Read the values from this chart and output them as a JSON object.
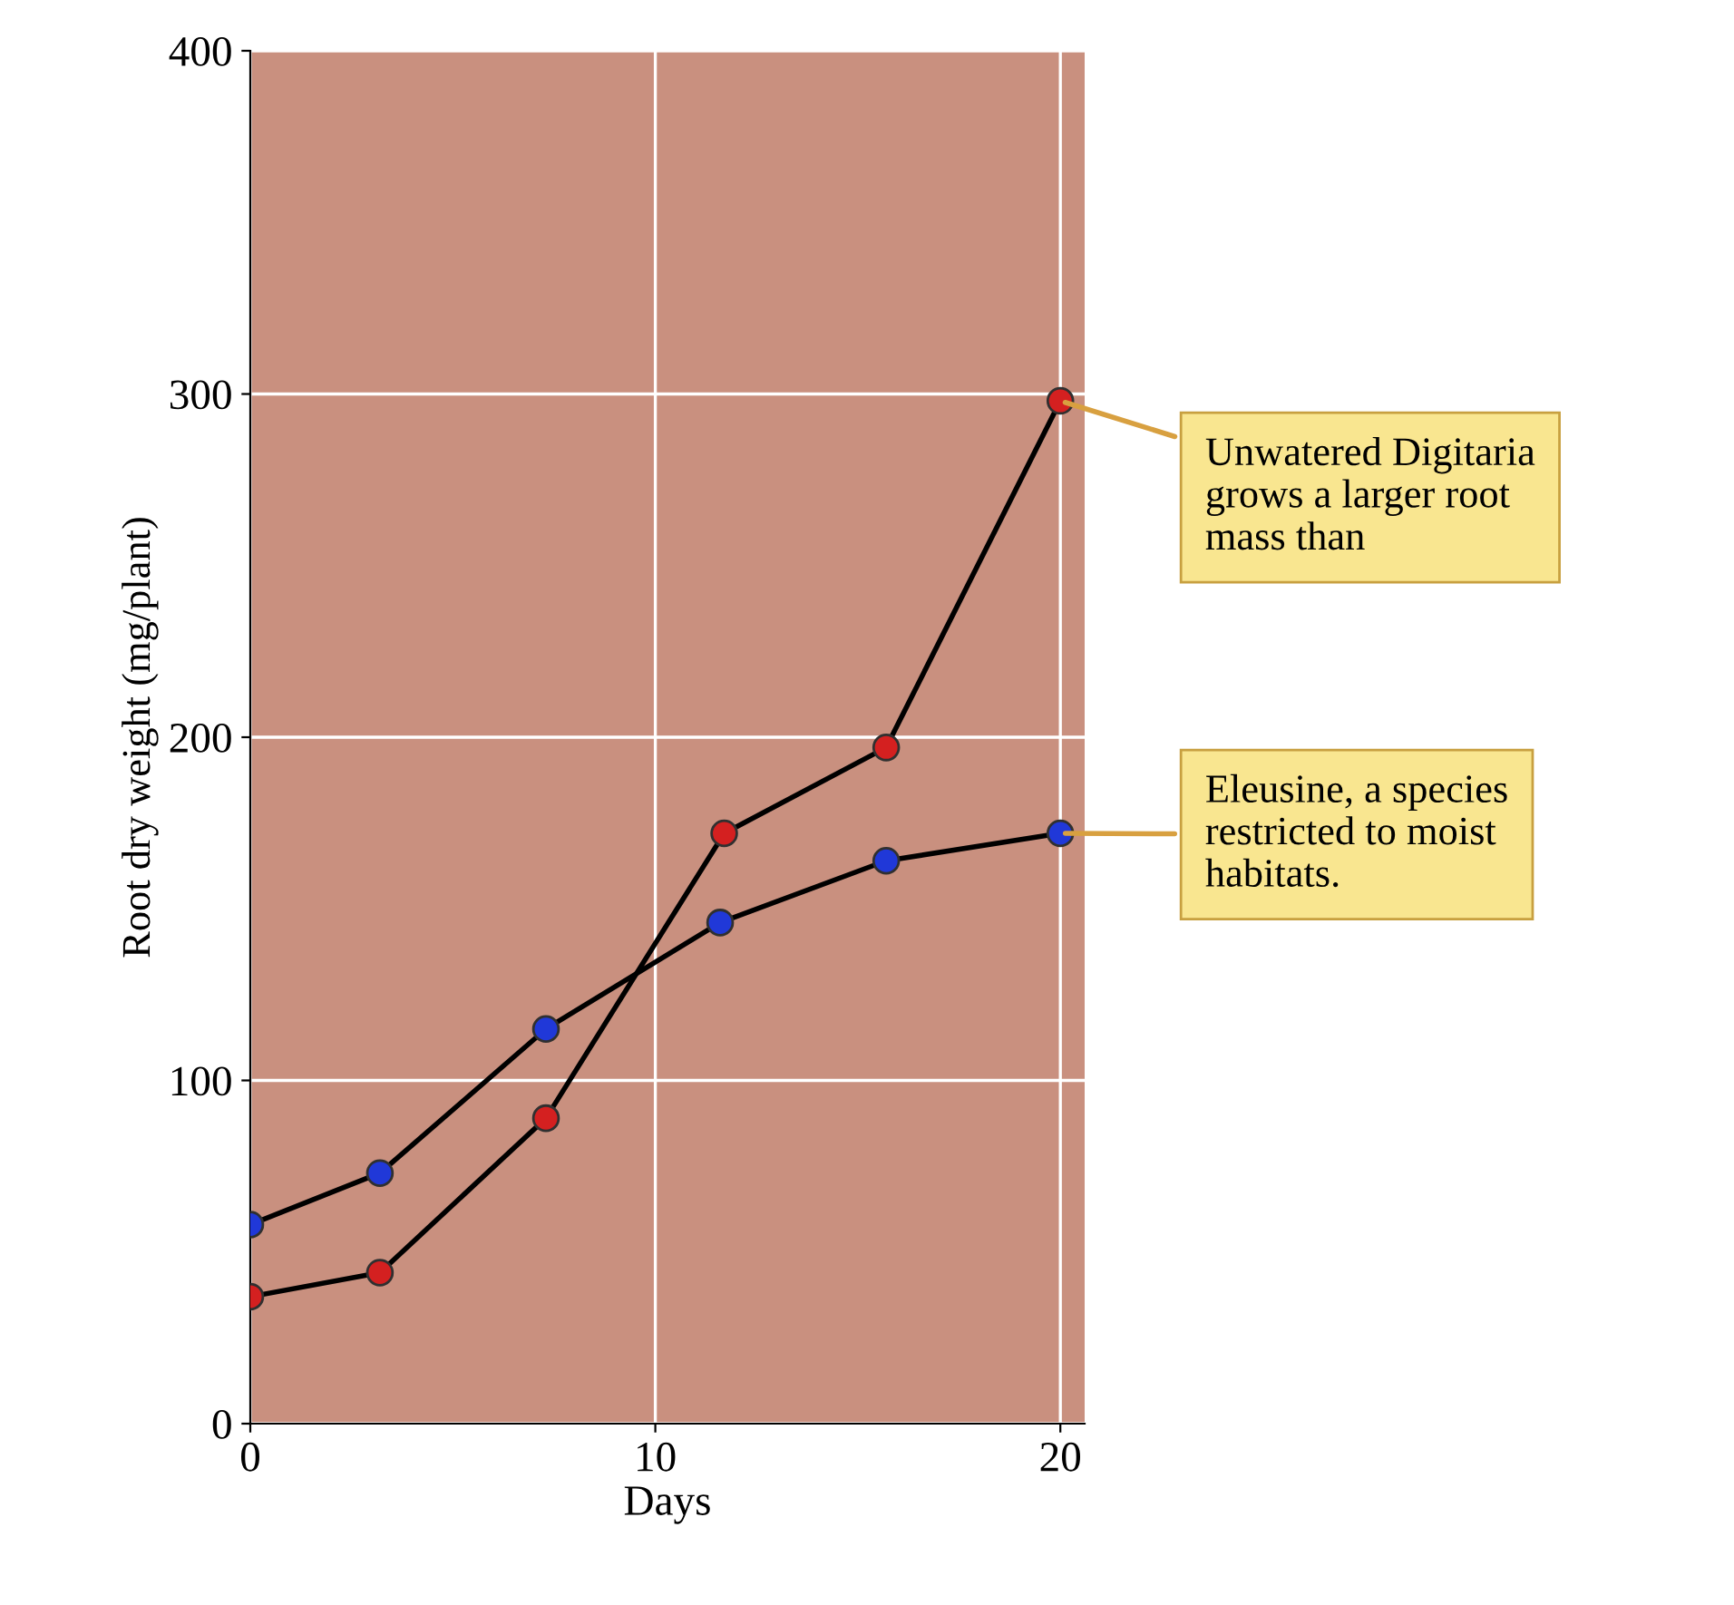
{
  "chart_data": {
    "type": "line",
    "xlabel": "Days",
    "ylabel": "Root dry weight (mg/plant)",
    "xlim": [
      0,
      20.6
    ],
    "xticks": [
      0,
      10,
      20
    ],
    "ylim": [
      0,
      400
    ],
    "yticks": [
      0,
      100,
      200,
      300,
      400
    ],
    "grid": true,
    "marker": "circle",
    "line_style": "solid",
    "legend": false,
    "series": [
      {
        "color": "#d42020",
        "x": [
          0,
          3.2,
          7.3,
          11.7,
          15.7,
          20
        ],
        "values": [
          37,
          44,
          89,
          172,
          197,
          298
        ]
      },
      {
        "color": "#2038d8",
        "x": [
          0,
          3.2,
          7.3,
          11.6,
          15.7,
          20
        ],
        "values": [
          58,
          73,
          115,
          146,
          164,
          172
        ]
      }
    ],
    "annotations": [
      {
        "text": "Unwatered Digitaria\ngrows a larger root\nmass than",
        "x": 20,
        "y": 298
      },
      {
        "text": "Eleusine, a species\nrestricted to moist\nhabitats.",
        "x": 20,
        "y": 172
      }
    ]
  }
}
